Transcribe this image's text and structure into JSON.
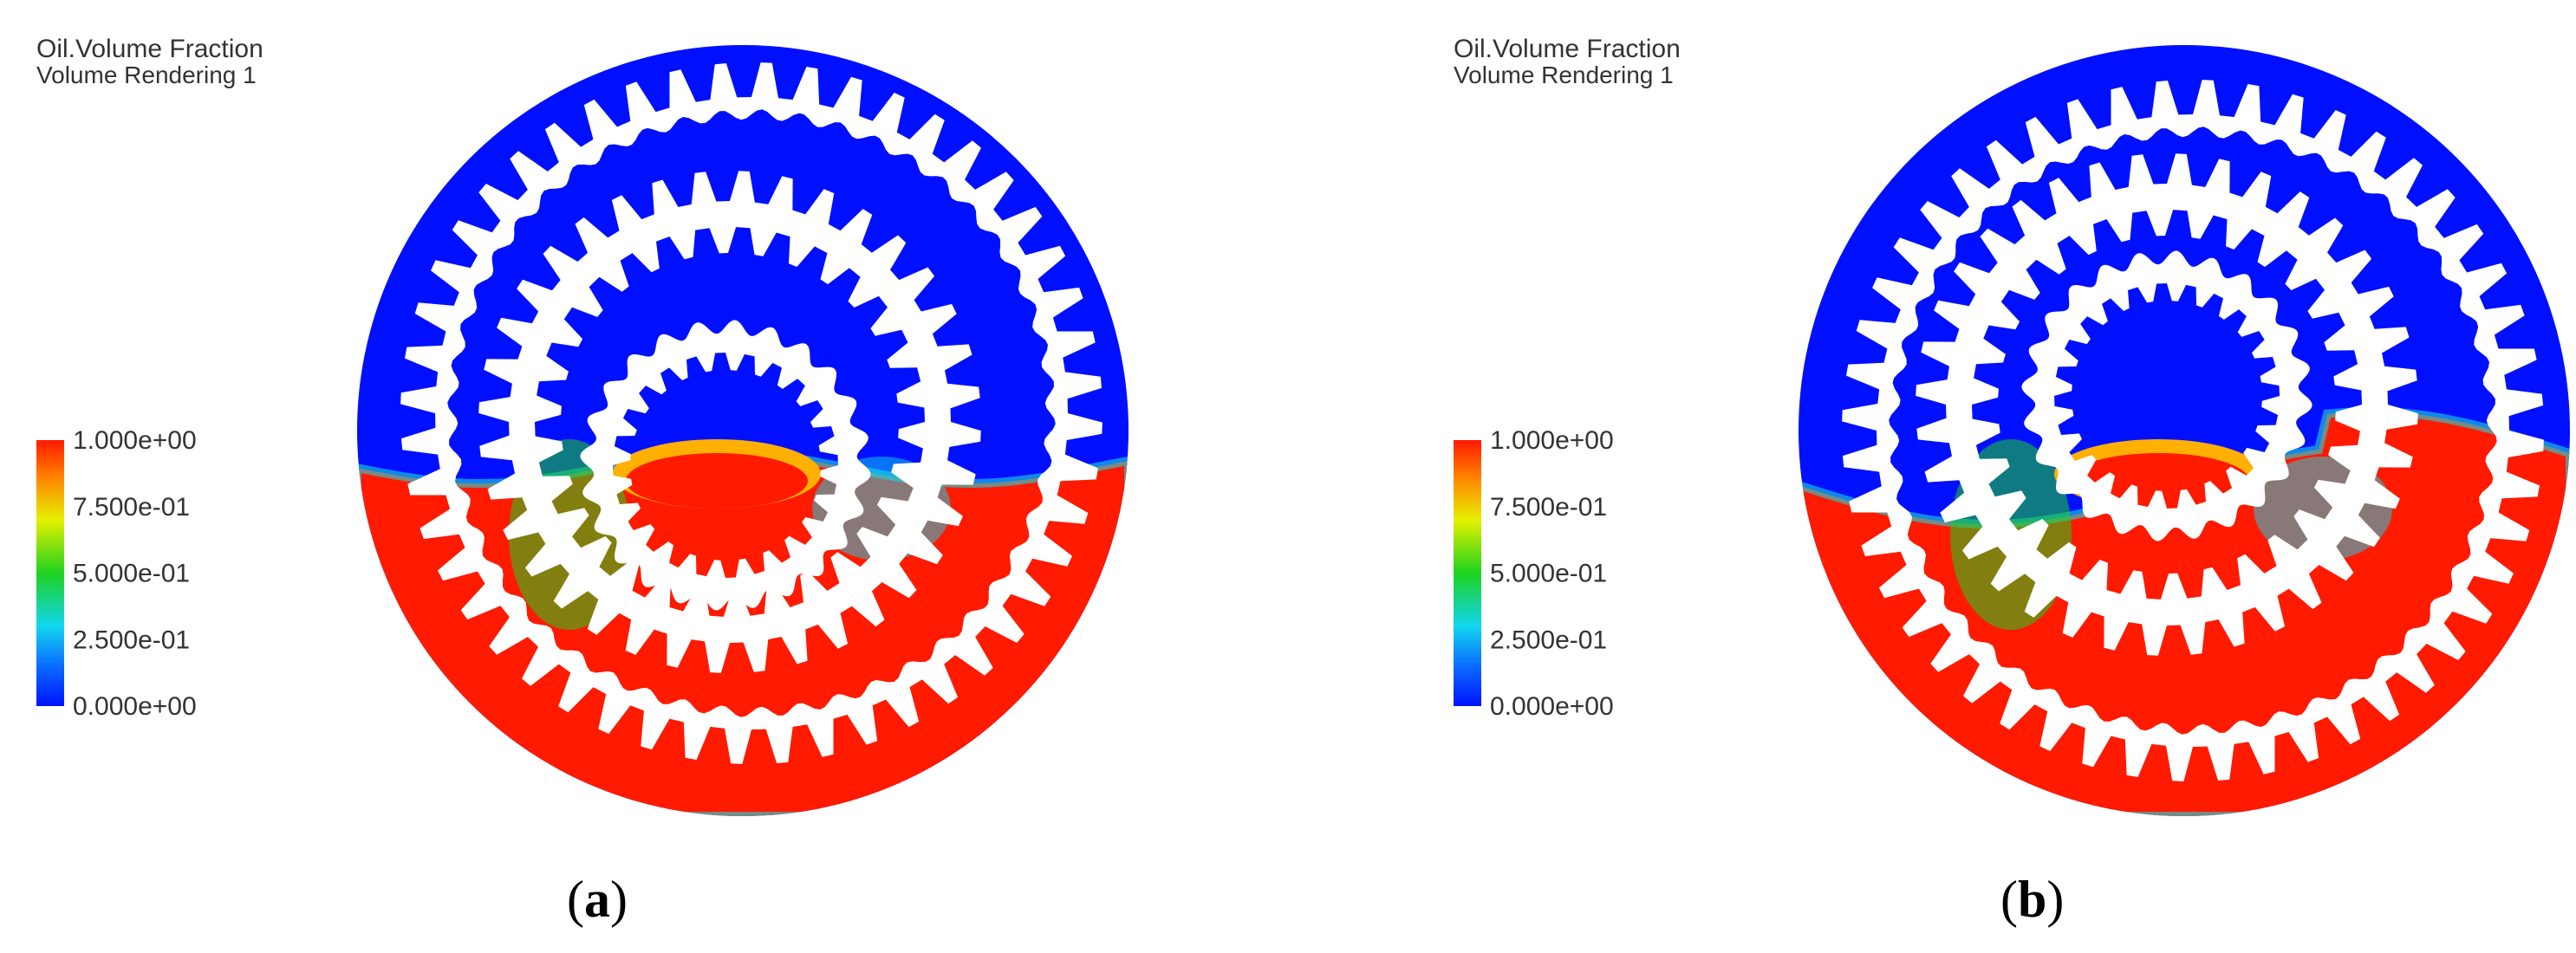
{
  "panels": [
    {
      "legend": {
        "title": "Oil.Volume Fraction",
        "subtitle": "Volume Rendering 1",
        "ticks": [
          "1.000e+00",
          "7.500e-01",
          "5.000e-01",
          "2.500e-01",
          "0.000e+00"
        ]
      },
      "caption": {
        "open": "(",
        "letter": "a",
        "close": ")"
      }
    },
    {
      "legend": {
        "title": "Oil.Volume Fraction",
        "subtitle": "Volume Rendering 1",
        "ticks": [
          "1.000e+00",
          "7.500e-01",
          "5.000e-01",
          "2.500e-01",
          "0.000e+00"
        ]
      },
      "caption": {
        "open": "(",
        "letter": "b",
        "close": ")"
      }
    }
  ]
}
